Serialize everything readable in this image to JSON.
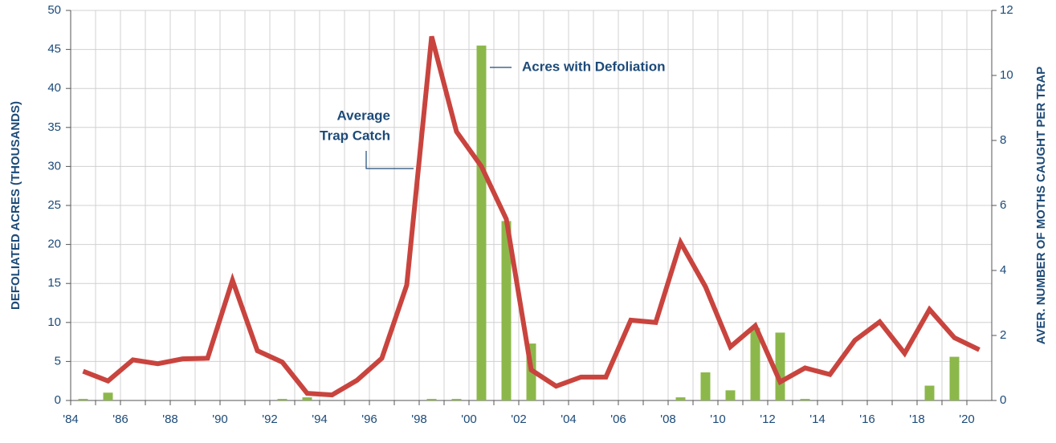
{
  "chart_data": {
    "type": "bar_line",
    "ylabel": "DEFOLIATED ACRES (THOUSANDS)",
    "y2label": "AVER. NUMBER OF MOTHS CAUGHT PER TRAP",
    "categories": [
      "'84",
      null,
      "'86",
      null,
      "'88",
      null,
      "'90",
      null,
      "'92",
      null,
      "'94",
      null,
      "'96",
      null,
      "'98",
      null,
      "'00",
      null,
      "'02",
      null,
      "'04",
      null,
      "'06",
      null,
      "'08",
      null,
      "'10",
      null,
      "'12",
      null,
      "'14",
      null,
      "'16",
      null,
      "'18",
      null,
      "'20"
    ],
    "series": [
      {
        "name": "Acres with Defoliation",
        "type": "bar",
        "color": "#8cb84b",
        "values": [
          0.2,
          1.0,
          0,
          0,
          0,
          0,
          0,
          0,
          0.2,
          0.4,
          0,
          0,
          0,
          0,
          0.2,
          0.2,
          45.5,
          23,
          7.3,
          0,
          0,
          0,
          0,
          0,
          0.4,
          3.6,
          1.3,
          9.3,
          8.7,
          0.2,
          0,
          0,
          0,
          0,
          1.9,
          5.6,
          0
        ]
      },
      {
        "name": "Average Trap Catch",
        "type": "line",
        "axis": "y2",
        "color": "#c9443e",
        "values": [
          0.9,
          0.6,
          1.25,
          1.13,
          1.28,
          1.3,
          3.7,
          1.53,
          1.18,
          0.22,
          0.17,
          0.62,
          1.3,
          3.55,
          11.2,
          8.27,
          7.2,
          5.58,
          0.94,
          0.44,
          0.72,
          0.72,
          2.47,
          2.4,
          4.86,
          3.5,
          1.65,
          2.3,
          0.57,
          1.0,
          0.8,
          1.85,
          2.42,
          1.45,
          2.8,
          1.93,
          1.56
        ]
      }
    ],
    "bar_annotation": "Acres with Defoliation",
    "line_annotation": [
      "Average",
      "Trap Catch"
    ],
    "ylim": [
      0,
      50
    ],
    "yticks": [
      0,
      5,
      10,
      15,
      20,
      25,
      30,
      35,
      40,
      45,
      50
    ],
    "y2lim": [
      0,
      12
    ],
    "y2ticks": [
      0,
      2,
      4,
      6,
      8,
      10,
      12
    ],
    "grid": true
  }
}
